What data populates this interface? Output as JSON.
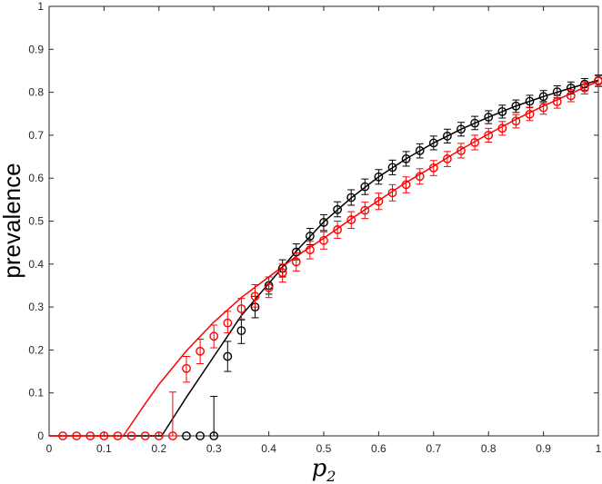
{
  "chart_data": {
    "type": "scatter",
    "title": "",
    "xlabel": "p",
    "xlabel_subscript": "2",
    "ylabel": "prevalence",
    "xlim": [
      0,
      1
    ],
    "ylim": [
      0,
      1
    ],
    "xticks": [
      "0",
      "0.1",
      "0.2",
      "0.3",
      "0.4",
      "0.5",
      "0.6",
      "0.7",
      "0.8",
      "0.9",
      "1"
    ],
    "yticks": [
      "0",
      "0.1",
      "0.2",
      "0.3",
      "0.4",
      "0.5",
      "0.6",
      "0.7",
      "0.8",
      "0.9",
      "1"
    ],
    "grid": false,
    "legend": false,
    "series": [
      {
        "color": "#000000",
        "marker": "circle",
        "points": [
          {
            "x": 0.25,
            "y": 0.0,
            "lo": 0.0,
            "hi": 0.0
          },
          {
            "x": 0.275,
            "y": 0.0,
            "lo": 0.0,
            "hi": 0.0
          },
          {
            "x": 0.3,
            "y": 0.0,
            "lo": 0.0,
            "hi": 0.092
          },
          {
            "x": 0.325,
            "y": 0.185,
            "lo": 0.15,
            "hi": 0.22
          },
          {
            "x": 0.35,
            "y": 0.245,
            "lo": 0.215,
            "hi": 0.27
          },
          {
            "x": 0.375,
            "y": 0.3,
            "lo": 0.275,
            "hi": 0.325
          },
          {
            "x": 0.4,
            "y": 0.35,
            "lo": 0.33,
            "hi": 0.37
          },
          {
            "x": 0.425,
            "y": 0.39,
            "lo": 0.37,
            "hi": 0.41
          },
          {
            "x": 0.45,
            "y": 0.428,
            "lo": 0.41,
            "hi": 0.447
          },
          {
            "x": 0.475,
            "y": 0.465,
            "lo": 0.445,
            "hi": 0.483
          },
          {
            "x": 0.5,
            "y": 0.497,
            "lo": 0.478,
            "hi": 0.515
          },
          {
            "x": 0.525,
            "y": 0.527,
            "lo": 0.51,
            "hi": 0.545
          },
          {
            "x": 0.55,
            "y": 0.555,
            "lo": 0.537,
            "hi": 0.573
          },
          {
            "x": 0.575,
            "y": 0.58,
            "lo": 0.562,
            "hi": 0.598
          },
          {
            "x": 0.6,
            "y": 0.603,
            "lo": 0.586,
            "hi": 0.62
          },
          {
            "x": 0.625,
            "y": 0.625,
            "lo": 0.608,
            "hi": 0.642
          },
          {
            "x": 0.65,
            "y": 0.645,
            "lo": 0.628,
            "hi": 0.662
          },
          {
            "x": 0.675,
            "y": 0.664,
            "lo": 0.647,
            "hi": 0.68
          },
          {
            "x": 0.7,
            "y": 0.682,
            "lo": 0.666,
            "hi": 0.698
          },
          {
            "x": 0.725,
            "y": 0.698,
            "lo": 0.682,
            "hi": 0.714
          },
          {
            "x": 0.75,
            "y": 0.714,
            "lo": 0.698,
            "hi": 0.73
          },
          {
            "x": 0.775,
            "y": 0.728,
            "lo": 0.713,
            "hi": 0.744
          },
          {
            "x": 0.8,
            "y": 0.742,
            "lo": 0.727,
            "hi": 0.757
          },
          {
            "x": 0.825,
            "y": 0.755,
            "lo": 0.74,
            "hi": 0.77
          },
          {
            "x": 0.85,
            "y": 0.768,
            "lo": 0.753,
            "hi": 0.782
          },
          {
            "x": 0.875,
            "y": 0.779,
            "lo": 0.765,
            "hi": 0.793
          },
          {
            "x": 0.9,
            "y": 0.79,
            "lo": 0.776,
            "hi": 0.804
          },
          {
            "x": 0.925,
            "y": 0.801,
            "lo": 0.787,
            "hi": 0.815
          },
          {
            "x": 0.95,
            "y": 0.81,
            "lo": 0.796,
            "hi": 0.824
          },
          {
            "x": 0.975,
            "y": 0.819,
            "lo": 0.805,
            "hi": 0.832
          },
          {
            "x": 1.0,
            "y": 0.827,
            "lo": 0.814,
            "hi": 0.84
          }
        ],
        "curve": [
          {
            "x": 0.0,
            "y": 0.0
          },
          {
            "x": 0.205,
            "y": 0.0
          },
          {
            "x": 0.25,
            "y": 0.09
          },
          {
            "x": 0.3,
            "y": 0.185
          },
          {
            "x": 0.35,
            "y": 0.28
          },
          {
            "x": 0.4,
            "y": 0.355
          },
          {
            "x": 0.45,
            "y": 0.43
          },
          {
            "x": 0.5,
            "y": 0.498
          },
          {
            "x": 0.55,
            "y": 0.554
          },
          {
            "x": 0.6,
            "y": 0.603
          },
          {
            "x": 0.65,
            "y": 0.645
          },
          {
            "x": 0.7,
            "y": 0.682
          },
          {
            "x": 0.75,
            "y": 0.714
          },
          {
            "x": 0.8,
            "y": 0.742
          },
          {
            "x": 0.85,
            "y": 0.768
          },
          {
            "x": 0.9,
            "y": 0.79
          },
          {
            "x": 0.95,
            "y": 0.81
          },
          {
            "x": 1.0,
            "y": 0.828
          }
        ]
      },
      {
        "color": "#ff0000",
        "marker": "circle",
        "points": [
          {
            "x": 0.025,
            "y": 0.0,
            "lo": 0.0,
            "hi": 0.0
          },
          {
            "x": 0.05,
            "y": 0.0,
            "lo": 0.0,
            "hi": 0.0
          },
          {
            "x": 0.075,
            "y": 0.0,
            "lo": 0.0,
            "hi": 0.0
          },
          {
            "x": 0.1,
            "y": 0.0,
            "lo": 0.0,
            "hi": 0.0
          },
          {
            "x": 0.125,
            "y": 0.0,
            "lo": 0.0,
            "hi": 0.0
          },
          {
            "x": 0.15,
            "y": 0.0,
            "lo": 0.0,
            "hi": 0.0
          },
          {
            "x": 0.175,
            "y": 0.0,
            "lo": 0.0,
            "hi": 0.0
          },
          {
            "x": 0.2,
            "y": 0.0,
            "lo": 0.0,
            "hi": 0.0
          },
          {
            "x": 0.225,
            "y": 0.0,
            "lo": 0.0,
            "hi": 0.102
          },
          {
            "x": 0.25,
            "y": 0.157,
            "lo": 0.125,
            "hi": 0.185
          },
          {
            "x": 0.275,
            "y": 0.197,
            "lo": 0.168,
            "hi": 0.225
          },
          {
            "x": 0.3,
            "y": 0.232,
            "lo": 0.205,
            "hi": 0.258
          },
          {
            "x": 0.325,
            "y": 0.263,
            "lo": 0.24,
            "hi": 0.29
          },
          {
            "x": 0.35,
            "y": 0.296,
            "lo": 0.272,
            "hi": 0.32
          },
          {
            "x": 0.375,
            "y": 0.325,
            "lo": 0.3,
            "hi": 0.352
          },
          {
            "x": 0.4,
            "y": 0.345,
            "lo": 0.322,
            "hi": 0.37
          },
          {
            "x": 0.425,
            "y": 0.38,
            "lo": 0.358,
            "hi": 0.4
          },
          {
            "x": 0.45,
            "y": 0.405,
            "lo": 0.384,
            "hi": 0.426
          },
          {
            "x": 0.475,
            "y": 0.433,
            "lo": 0.412,
            "hi": 0.453
          },
          {
            "x": 0.5,
            "y": 0.455,
            "lo": 0.435,
            "hi": 0.475
          },
          {
            "x": 0.525,
            "y": 0.48,
            "lo": 0.46,
            "hi": 0.5
          },
          {
            "x": 0.55,
            "y": 0.503,
            "lo": 0.483,
            "hi": 0.522
          },
          {
            "x": 0.575,
            "y": 0.525,
            "lo": 0.506,
            "hi": 0.544
          },
          {
            "x": 0.6,
            "y": 0.546,
            "lo": 0.527,
            "hi": 0.565
          },
          {
            "x": 0.625,
            "y": 0.566,
            "lo": 0.547,
            "hi": 0.585
          },
          {
            "x": 0.65,
            "y": 0.585,
            "lo": 0.566,
            "hi": 0.603
          },
          {
            "x": 0.675,
            "y": 0.604,
            "lo": 0.586,
            "hi": 0.622
          },
          {
            "x": 0.7,
            "y": 0.624,
            "lo": 0.606,
            "hi": 0.641
          },
          {
            "x": 0.725,
            "y": 0.645,
            "lo": 0.627,
            "hi": 0.662
          },
          {
            "x": 0.75,
            "y": 0.664,
            "lo": 0.647,
            "hi": 0.681
          },
          {
            "x": 0.775,
            "y": 0.683,
            "lo": 0.666,
            "hi": 0.7
          },
          {
            "x": 0.8,
            "y": 0.7,
            "lo": 0.684,
            "hi": 0.716
          },
          {
            "x": 0.825,
            "y": 0.716,
            "lo": 0.7,
            "hi": 0.732
          },
          {
            "x": 0.85,
            "y": 0.733,
            "lo": 0.717,
            "hi": 0.748
          },
          {
            "x": 0.875,
            "y": 0.749,
            "lo": 0.734,
            "hi": 0.764
          },
          {
            "x": 0.9,
            "y": 0.764,
            "lo": 0.749,
            "hi": 0.779
          },
          {
            "x": 0.925,
            "y": 0.778,
            "lo": 0.763,
            "hi": 0.792
          },
          {
            "x": 0.95,
            "y": 0.792,
            "lo": 0.778,
            "hi": 0.806
          },
          {
            "x": 0.975,
            "y": 0.81,
            "lo": 0.796,
            "hi": 0.823
          },
          {
            "x": 1.0,
            "y": 0.826,
            "lo": 0.813,
            "hi": 0.838
          }
        ],
        "curve": [
          {
            "x": 0.0,
            "y": 0.0
          },
          {
            "x": 0.135,
            "y": 0.0
          },
          {
            "x": 0.15,
            "y": 0.028
          },
          {
            "x": 0.175,
            "y": 0.075
          },
          {
            "x": 0.2,
            "y": 0.12
          },
          {
            "x": 0.25,
            "y": 0.198
          },
          {
            "x": 0.3,
            "y": 0.265
          },
          {
            "x": 0.35,
            "y": 0.322
          },
          {
            "x": 0.4,
            "y": 0.37
          },
          {
            "x": 0.45,
            "y": 0.418
          },
          {
            "x": 0.5,
            "y": 0.46
          },
          {
            "x": 0.55,
            "y": 0.505
          },
          {
            "x": 0.6,
            "y": 0.548
          },
          {
            "x": 0.65,
            "y": 0.59
          },
          {
            "x": 0.7,
            "y": 0.628
          },
          {
            "x": 0.75,
            "y": 0.667
          },
          {
            "x": 0.8,
            "y": 0.703
          },
          {
            "x": 0.85,
            "y": 0.737
          },
          {
            "x": 0.9,
            "y": 0.768
          },
          {
            "x": 0.95,
            "y": 0.797
          },
          {
            "x": 1.0,
            "y": 0.826
          }
        ]
      }
    ]
  }
}
